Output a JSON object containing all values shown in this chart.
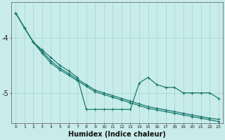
{
  "xlabel": "Humidex (Indice chaleur)",
  "background_color": "#c8ecea",
  "grid_color": "#a8d8d4",
  "line_color": "#1a7a6e",
  "x_values": [
    0,
    1,
    2,
    3,
    4,
    5,
    6,
    7,
    8,
    9,
    10,
    11,
    12,
    13,
    14,
    15,
    16,
    17,
    18,
    19,
    20,
    21,
    22,
    23
  ],
  "series1": [
    -3.55,
    -3.82,
    -4.08,
    -4.22,
    -4.36,
    -4.5,
    -4.6,
    -4.72,
    -5.3,
    -5.3,
    -5.3,
    -5.3,
    -5.3,
    -5.3,
    -4.82,
    -4.72,
    -4.85,
    -4.9,
    -4.9,
    -5.0,
    -5.0,
    -5.0,
    -5.0,
    -5.1
  ],
  "series2": [
    -3.55,
    -3.82,
    -4.08,
    -4.25,
    -4.42,
    -4.55,
    -4.65,
    -4.75,
    -4.85,
    -4.95,
    -5.0,
    -5.05,
    -5.1,
    -5.15,
    -5.2,
    -5.25,
    -5.28,
    -5.31,
    -5.34,
    -5.37,
    -5.4,
    -5.43,
    -5.46,
    -5.48
  ],
  "series3": [
    -3.55,
    -3.82,
    -4.08,
    -4.28,
    -4.46,
    -4.58,
    -4.68,
    -4.78,
    -4.88,
    -4.98,
    -5.03,
    -5.08,
    -5.13,
    -5.18,
    -5.23,
    -5.28,
    -5.31,
    -5.34,
    -5.37,
    -5.4,
    -5.43,
    -5.46,
    -5.49,
    -5.52
  ],
  "ylim_min": -5.55,
  "ylim_max": -3.35,
  "yticks": [
    -5.0,
    -4.0
  ],
  "ytick_labels": [
    "-5",
    "-4"
  ],
  "xlim_min": 0,
  "xlim_max": 23
}
